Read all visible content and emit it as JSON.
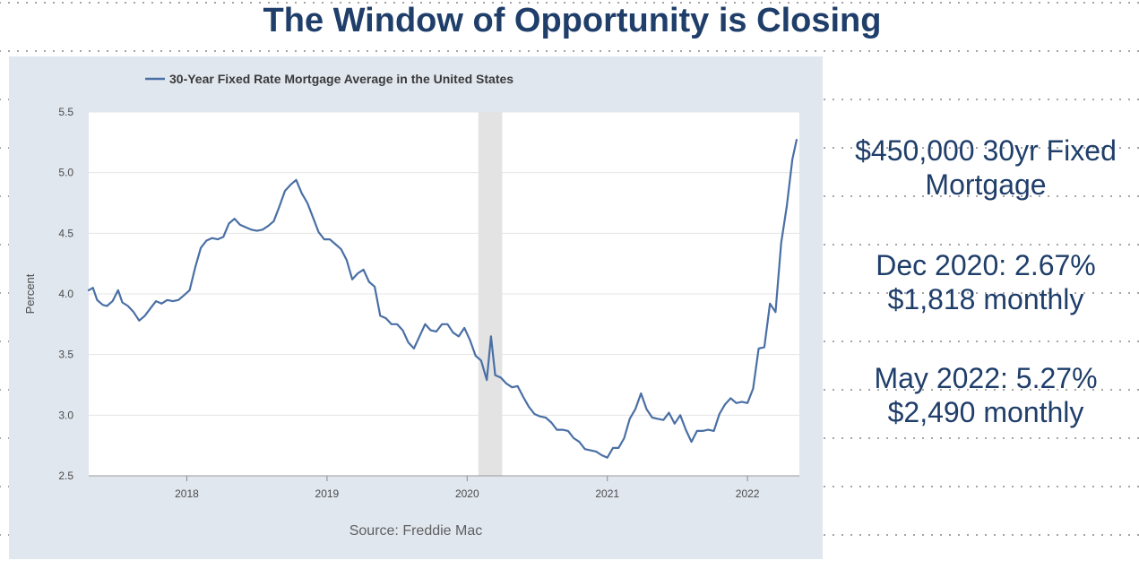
{
  "title": "The Window of Opportunity is Closing",
  "source": "Source: Freddie Mac",
  "side_panel": {
    "heading_line1": "$450,000 30yr Fixed",
    "heading_line2": "Mortgage",
    "dec_rate": "Dec 2020: 2.67%",
    "dec_payment": "$1,818 monthly",
    "may_rate": "May 2022: 5.27%",
    "may_payment": "$2,490 monthly"
  },
  "colors": {
    "title": "#1f3e6a",
    "series": "#4a6fa5",
    "recession": "#e3e3e3",
    "panel": "#e1e7ef"
  },
  "chart_data": {
    "type": "line",
    "ylabel": "Percent",
    "xlabel": "",
    "ylim": [
      2.5,
      5.5
    ],
    "xlim": [
      2017.3,
      2022.37
    ],
    "yticks": [
      "2.5",
      "3.0",
      "3.5",
      "4.0",
      "4.5",
      "5.0",
      "5.5"
    ],
    "xticks": [
      "2018",
      "2019",
      "2020",
      "2021",
      "2022"
    ],
    "grid": "horizontal",
    "legend": "top-left",
    "shaded_region": [
      2020.08,
      2020.25
    ],
    "series": [
      {
        "name": "30-Year Fixed Rate Mortgage Average in the United States",
        "x": [
          2017.3,
          2017.33,
          2017.36,
          2017.4,
          2017.43,
          2017.47,
          2017.51,
          2017.54,
          2017.58,
          2017.62,
          2017.66,
          2017.7,
          2017.74,
          2017.78,
          2017.82,
          2017.86,
          2017.9,
          2017.94,
          2017.98,
          2018.02,
          2018.06,
          2018.1,
          2018.14,
          2018.18,
          2018.22,
          2018.26,
          2018.3,
          2018.34,
          2018.38,
          2018.42,
          2018.46,
          2018.5,
          2018.54,
          2018.58,
          2018.62,
          2018.66,
          2018.7,
          2018.74,
          2018.78,
          2018.82,
          2018.86,
          2018.9,
          2018.94,
          2018.98,
          2019.02,
          2019.06,
          2019.1,
          2019.14,
          2019.18,
          2019.22,
          2019.26,
          2019.3,
          2019.34,
          2019.38,
          2019.42,
          2019.46,
          2019.5,
          2019.54,
          2019.58,
          2019.62,
          2019.66,
          2019.7,
          2019.74,
          2019.78,
          2019.82,
          2019.86,
          2019.9,
          2019.94,
          2019.98,
          2020.02,
          2020.06,
          2020.1,
          2020.14,
          2020.17,
          2020.2,
          2020.24,
          2020.28,
          2020.32,
          2020.36,
          2020.4,
          2020.44,
          2020.48,
          2020.52,
          2020.56,
          2020.6,
          2020.64,
          2020.68,
          2020.72,
          2020.76,
          2020.8,
          2020.84,
          2020.88,
          2020.92,
          2020.96,
          2021.0,
          2021.04,
          2021.08,
          2021.12,
          2021.16,
          2021.2,
          2021.24,
          2021.28,
          2021.32,
          2021.36,
          2021.4,
          2021.44,
          2021.48,
          2021.52,
          2021.56,
          2021.6,
          2021.64,
          2021.68,
          2021.72,
          2021.76,
          2021.8,
          2021.84,
          2021.88,
          2021.92,
          2021.96,
          2022.0,
          2022.04,
          2022.08,
          2022.12,
          2022.16,
          2022.2,
          2022.24,
          2022.28,
          2022.32,
          2022.35
        ],
        "y": [
          4.03,
          4.05,
          3.95,
          3.91,
          3.9,
          3.94,
          4.03,
          3.93,
          3.9,
          3.85,
          3.78,
          3.82,
          3.88,
          3.94,
          3.92,
          3.95,
          3.94,
          3.95,
          3.99,
          4.03,
          4.22,
          4.38,
          4.44,
          4.46,
          4.45,
          4.47,
          4.58,
          4.62,
          4.57,
          4.55,
          4.53,
          4.52,
          4.53,
          4.56,
          4.6,
          4.72,
          4.85,
          4.9,
          4.94,
          4.83,
          4.75,
          4.63,
          4.51,
          4.45,
          4.45,
          4.41,
          4.37,
          4.28,
          4.12,
          4.17,
          4.2,
          4.1,
          4.06,
          3.82,
          3.8,
          3.75,
          3.75,
          3.7,
          3.6,
          3.55,
          3.65,
          3.75,
          3.7,
          3.69,
          3.75,
          3.75,
          3.68,
          3.65,
          3.72,
          3.62,
          3.49,
          3.45,
          3.29,
          3.65,
          3.33,
          3.31,
          3.26,
          3.23,
          3.24,
          3.15,
          3.07,
          3.01,
          2.99,
          2.98,
          2.94,
          2.88,
          2.88,
          2.87,
          2.81,
          2.78,
          2.72,
          2.71,
          2.7,
          2.67,
          2.65,
          2.73,
          2.73,
          2.81,
          2.97,
          3.05,
          3.18,
          3.05,
          2.98,
          2.97,
          2.96,
          3.02,
          2.93,
          3.0,
          2.88,
          2.78,
          2.87,
          2.87,
          2.88,
          2.87,
          3.01,
          3.09,
          3.14,
          3.1,
          3.11,
          3.1,
          3.22,
          3.55,
          3.56,
          3.92,
          3.85,
          4.42,
          4.72,
          5.11,
          5.27
        ]
      }
    ]
  }
}
